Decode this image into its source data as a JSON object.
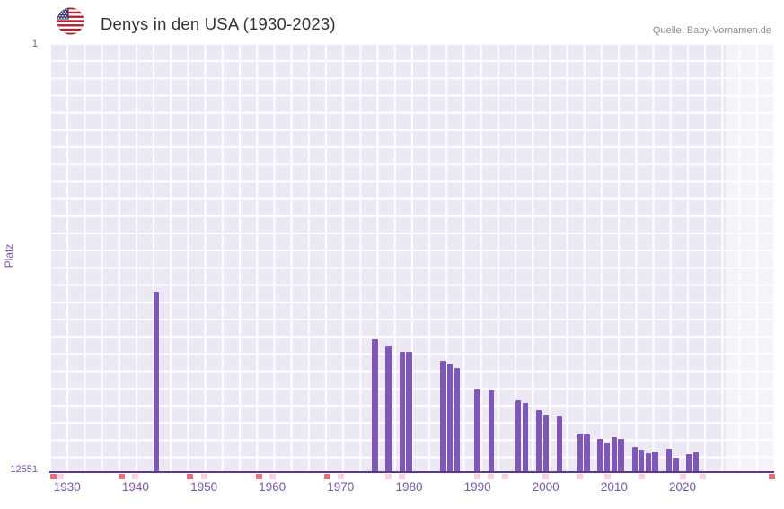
{
  "header": {
    "title": "Denys in den USA (1930-2023)",
    "source": "Quelle: Baby-Vornamen.de"
  },
  "chart_data": {
    "type": "bar",
    "title": "Denys in den USA (1930-2023)",
    "xlabel": "",
    "ylabel": "Platz",
    "y_axis": {
      "top_label": "1",
      "bottom_label": "12551",
      "best": 1,
      "worst": 12551,
      "inverted": true
    },
    "x_domain": [
      1927.4,
      2033.4
    ],
    "x_ticks": [
      "1930",
      "1940",
      "1950",
      "1960",
      "1970",
      "1980",
      "1990",
      "2000",
      "2010",
      "2020"
    ],
    "grid": true,
    "legend": false,
    "bars": [
      {
        "year": 1943,
        "rank": 7300
      },
      {
        "year": 1975,
        "rank": 8680
      },
      {
        "year": 1977,
        "rank": 8860
      },
      {
        "year": 1979,
        "rank": 9050
      },
      {
        "year": 1980,
        "rank": 9040
      },
      {
        "year": 1985,
        "rank": 9320
      },
      {
        "year": 1986,
        "rank": 9400
      },
      {
        "year": 1987,
        "rank": 9530
      },
      {
        "year": 1990,
        "rank": 10130
      },
      {
        "year": 1992,
        "rank": 10160
      },
      {
        "year": 1996,
        "rank": 10470
      },
      {
        "year": 1997,
        "rank": 10550
      },
      {
        "year": 1999,
        "rank": 10760
      },
      {
        "year": 2000,
        "rank": 10890
      },
      {
        "year": 2002,
        "rank": 10920
      },
      {
        "year": 2005,
        "rank": 11440
      },
      {
        "year": 2006,
        "rank": 11470
      },
      {
        "year": 2008,
        "rank": 11610
      },
      {
        "year": 2009,
        "rank": 11700
      },
      {
        "year": 2010,
        "rank": 11560
      },
      {
        "year": 2011,
        "rank": 11590
      },
      {
        "year": 2013,
        "rank": 11830
      },
      {
        "year": 2014,
        "rank": 11930
      },
      {
        "year": 2015,
        "rank": 12030
      },
      {
        "year": 2016,
        "rank": 11980
      },
      {
        "year": 2018,
        "rank": 11890
      },
      {
        "year": 2019,
        "rank": 12150
      },
      {
        "year": 2021,
        "rank": 12060
      },
      {
        "year": 2022,
        "rank": 11990
      }
    ],
    "unranked_marks": {
      "dark_years": [
        1928,
        1938,
        1948,
        1958,
        1968,
        2033
      ],
      "light_years": [
        1929,
        1940,
        1950,
        1960,
        1970,
        1977,
        1979,
        1990,
        1992,
        1994,
        2000,
        2005,
        2009,
        2014,
        2020,
        2023
      ]
    },
    "colors": {
      "bar": "#7e57b7",
      "axis": "#5b3a8e",
      "tick_label": "#7d55a8",
      "plot_bg": "#ece9f5",
      "grid_line": "#ffffff",
      "mark_dark": "#e4737f",
      "mark_light": "#f6d0dc",
      "title_text": "#333333",
      "source_text": "#8b8b8b"
    }
  }
}
